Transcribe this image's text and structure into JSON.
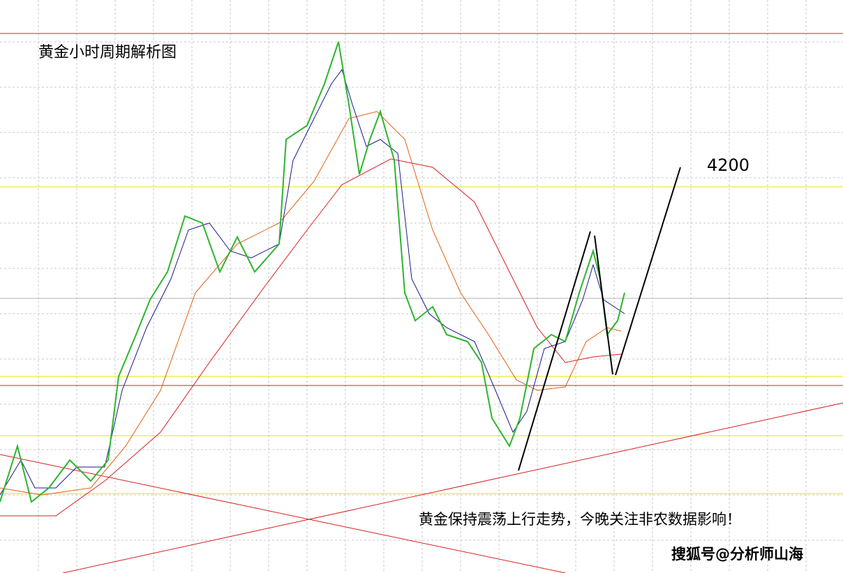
{
  "title": "黄金小时周期解析图",
  "target_label": "4200",
  "annotation": "黄金保持震荡上行走势，今晚关注非农数据影响！",
  "watermark": "搜狐号@分析师山海"
}
